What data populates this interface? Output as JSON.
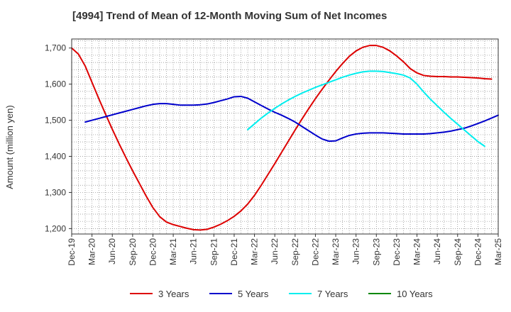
{
  "chart_data": {
    "type": "line",
    "title": "[4994]  Trend of Mean of 12-Month Moving Sum of Net Incomes",
    "xlabel": "",
    "ylabel": "Amount (million yen)",
    "x_ticks": [
      "Dec-19",
      "Mar-20",
      "Jun-20",
      "Sep-20",
      "Dec-20",
      "Mar-21",
      "Jun-21",
      "Sep-21",
      "Dec-21",
      "Mar-22",
      "Jun-22",
      "Sep-22",
      "Dec-22",
      "Mar-23",
      "Jun-23",
      "Sep-23",
      "Dec-23",
      "Mar-24",
      "Jun-24",
      "Sep-24",
      "Dec-24",
      "Mar-25"
    ],
    "y_ticks": [
      "1,200",
      "1,300",
      "1,400",
      "1,500",
      "1,600",
      "1,700"
    ],
    "ylim": [
      1185,
      1725
    ],
    "grid": true,
    "legend_position": "bottom",
    "series": [
      {
        "name": "3 Years",
        "color": "#dd0000",
        "points": [
          [
            0,
            1700
          ],
          [
            1,
            1683
          ],
          [
            2,
            1650
          ],
          [
            3,
            1605
          ],
          [
            4,
            1560
          ],
          [
            5,
            1517
          ],
          [
            6,
            1475
          ],
          [
            7,
            1435
          ],
          [
            8,
            1397
          ],
          [
            9,
            1360
          ],
          [
            10,
            1325
          ],
          [
            11,
            1290
          ],
          [
            12,
            1258
          ],
          [
            13,
            1233
          ],
          [
            14,
            1218
          ],
          [
            15,
            1211
          ],
          [
            16,
            1206
          ],
          [
            17,
            1201
          ],
          [
            18,
            1197
          ],
          [
            19,
            1196
          ],
          [
            20,
            1198
          ],
          [
            21,
            1204
          ],
          [
            22,
            1212
          ],
          [
            23,
            1222
          ],
          [
            24,
            1234
          ],
          [
            25,
            1249
          ],
          [
            26,
            1268
          ],
          [
            27,
            1292
          ],
          [
            28,
            1320
          ],
          [
            29,
            1350
          ],
          [
            30,
            1380
          ],
          [
            31,
            1411
          ],
          [
            32,
            1442
          ],
          [
            33,
            1473
          ],
          [
            34,
            1503
          ],
          [
            35,
            1532
          ],
          [
            36,
            1560
          ],
          [
            37,
            1586
          ],
          [
            38,
            1611
          ],
          [
            39,
            1635
          ],
          [
            40,
            1657
          ],
          [
            41,
            1677
          ],
          [
            42,
            1692
          ],
          [
            43,
            1702
          ],
          [
            44,
            1707
          ],
          [
            45,
            1707
          ],
          [
            46,
            1702
          ],
          [
            47,
            1692
          ],
          [
            48,
            1678
          ],
          [
            49,
            1662
          ],
          [
            50,
            1643
          ],
          [
            51,
            1631
          ],
          [
            52,
            1624
          ],
          [
            53,
            1622
          ],
          [
            54,
            1621
          ],
          [
            55,
            1621
          ],
          [
            56,
            1620
          ],
          [
            57,
            1620
          ],
          [
            58,
            1619
          ],
          [
            59,
            1618
          ],
          [
            60,
            1617
          ],
          [
            61,
            1615
          ],
          [
            62,
            1614
          ]
        ]
      },
      {
        "name": "5 Years",
        "color": "#0000cc",
        "points": [
          [
            2,
            1495
          ],
          [
            3,
            1500
          ],
          [
            4,
            1505
          ],
          [
            5,
            1510
          ],
          [
            6,
            1515
          ],
          [
            7,
            1520
          ],
          [
            8,
            1525
          ],
          [
            9,
            1530
          ],
          [
            10,
            1535
          ],
          [
            11,
            1540
          ],
          [
            12,
            1544
          ],
          [
            13,
            1546
          ],
          [
            14,
            1546
          ],
          [
            15,
            1544
          ],
          [
            16,
            1542
          ],
          [
            17,
            1542
          ],
          [
            18,
            1542
          ],
          [
            19,
            1543
          ],
          [
            20,
            1545
          ],
          [
            21,
            1549
          ],
          [
            22,
            1554
          ],
          [
            23,
            1559
          ],
          [
            24,
            1565
          ],
          [
            25,
            1566
          ],
          [
            26,
            1561
          ],
          [
            27,
            1551
          ],
          [
            28,
            1541
          ],
          [
            29,
            1531
          ],
          [
            30,
            1522
          ],
          [
            31,
            1514
          ],
          [
            32,
            1505
          ],
          [
            33,
            1495
          ],
          [
            34,
            1483
          ],
          [
            35,
            1471
          ],
          [
            36,
            1459
          ],
          [
            37,
            1448
          ],
          [
            38,
            1442
          ],
          [
            39,
            1443
          ],
          [
            40,
            1451
          ],
          [
            41,
            1458
          ],
          [
            42,
            1462
          ],
          [
            43,
            1464
          ],
          [
            44,
            1465
          ],
          [
            45,
            1465
          ],
          [
            46,
            1465
          ],
          [
            47,
            1464
          ],
          [
            48,
            1463
          ],
          [
            49,
            1462
          ],
          [
            50,
            1462
          ],
          [
            51,
            1462
          ],
          [
            52,
            1462
          ],
          [
            53,
            1463
          ],
          [
            54,
            1465
          ],
          [
            55,
            1467
          ],
          [
            56,
            1470
          ],
          [
            57,
            1474
          ],
          [
            58,
            1478
          ],
          [
            59,
            1484
          ],
          [
            60,
            1491
          ],
          [
            61,
            1498
          ],
          [
            62,
            1506
          ],
          [
            63,
            1514
          ]
        ]
      },
      {
        "name": "7 Years",
        "color": "#00eeee",
        "points": [
          [
            26,
            1474
          ],
          [
            27,
            1490
          ],
          [
            28,
            1506
          ],
          [
            29,
            1520
          ],
          [
            30,
            1533
          ],
          [
            31,
            1545
          ],
          [
            32,
            1556
          ],
          [
            33,
            1566
          ],
          [
            34,
            1575
          ],
          [
            35,
            1583
          ],
          [
            36,
            1591
          ],
          [
            37,
            1598
          ],
          [
            38,
            1605
          ],
          [
            39,
            1612
          ],
          [
            40,
            1619
          ],
          [
            41,
            1625
          ],
          [
            42,
            1630
          ],
          [
            43,
            1634
          ],
          [
            44,
            1636
          ],
          [
            45,
            1636
          ],
          [
            46,
            1635
          ],
          [
            47,
            1632
          ],
          [
            48,
            1629
          ],
          [
            49,
            1625
          ],
          [
            50,
            1617
          ],
          [
            51,
            1600
          ],
          [
            52,
            1578
          ],
          [
            53,
            1558
          ],
          [
            54,
            1540
          ],
          [
            55,
            1522
          ],
          [
            56,
            1505
          ],
          [
            57,
            1489
          ],
          [
            58,
            1473
          ],
          [
            59,
            1457
          ],
          [
            60,
            1441
          ],
          [
            61,
            1428
          ]
        ]
      },
      {
        "name": "10 Years",
        "color": "#008800",
        "points": []
      }
    ]
  }
}
